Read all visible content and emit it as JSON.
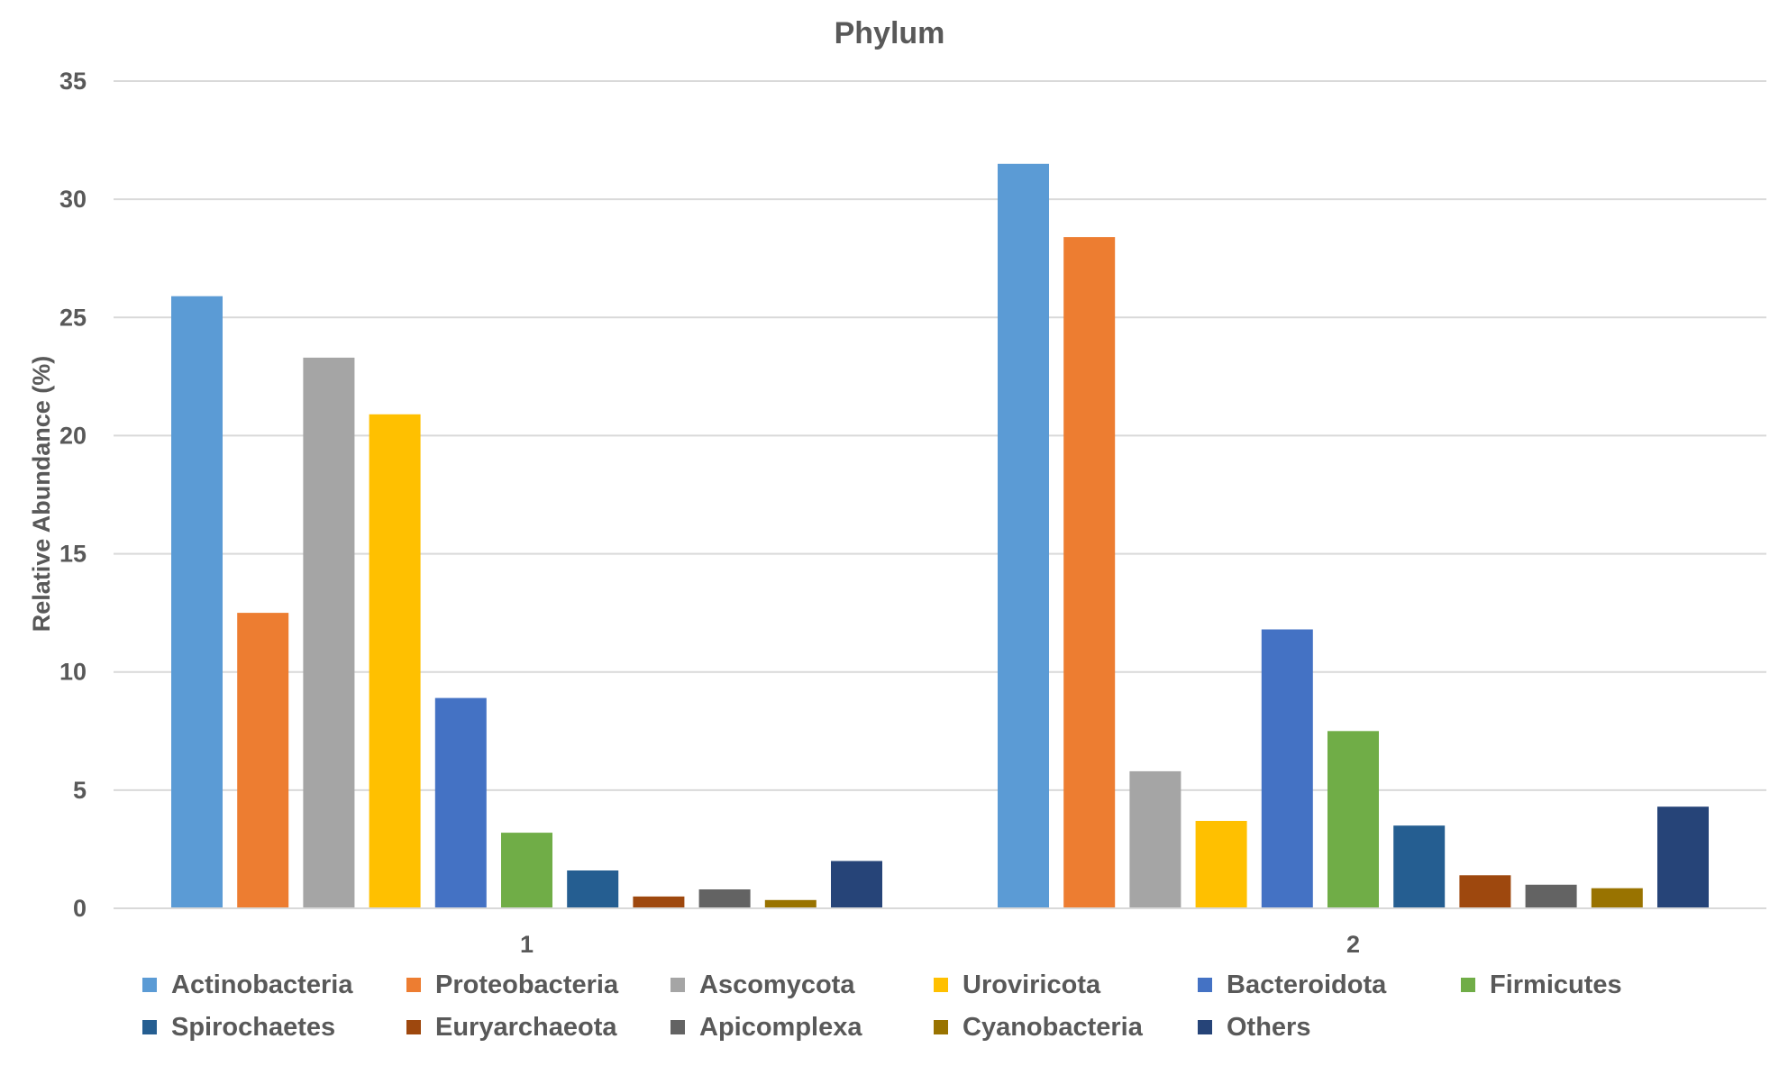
{
  "chart_data": {
    "type": "bar",
    "title": "Phylum",
    "xlabel": "",
    "ylabel": "Relative Abundance (%)",
    "ylim": [
      0,
      35
    ],
    "yticks": [
      0,
      5,
      10,
      15,
      20,
      25,
      30,
      35
    ],
    "grid": true,
    "legend_position": "bottom",
    "categories": [
      "1",
      "2"
    ],
    "series": [
      {
        "name": "Actinobacteria",
        "color": "#5B9BD5",
        "values": [
          25.9,
          31.5
        ]
      },
      {
        "name": "Proteobacteria",
        "color": "#ED7D31",
        "values": [
          12.5,
          28.4
        ]
      },
      {
        "name": "Ascomycota",
        "color": "#A5A5A5",
        "values": [
          23.3,
          5.8
        ]
      },
      {
        "name": "Uroviricota",
        "color": "#FFC000",
        "values": [
          20.9,
          3.7
        ]
      },
      {
        "name": "Bacteroidota",
        "color": "#4472C4",
        "values": [
          8.9,
          11.8
        ]
      },
      {
        "name": "Firmicutes",
        "color": "#70AD47",
        "values": [
          3.2,
          7.5
        ]
      },
      {
        "name": "Spirochaetes",
        "color": "#255E91",
        "values": [
          1.6,
          3.5
        ]
      },
      {
        "name": "Euryarchaeota",
        "color": "#9E480E",
        "values": [
          0.5,
          1.4
        ]
      },
      {
        "name": "Apicomplexa",
        "color": "#636363",
        "values": [
          0.8,
          1.0
        ]
      },
      {
        "name": "Cyanobacteria",
        "color": "#997300",
        "values": [
          0.35,
          0.85
        ]
      },
      {
        "name": "Others",
        "color": "#264478",
        "values": [
          2.0,
          4.3
        ]
      }
    ]
  }
}
